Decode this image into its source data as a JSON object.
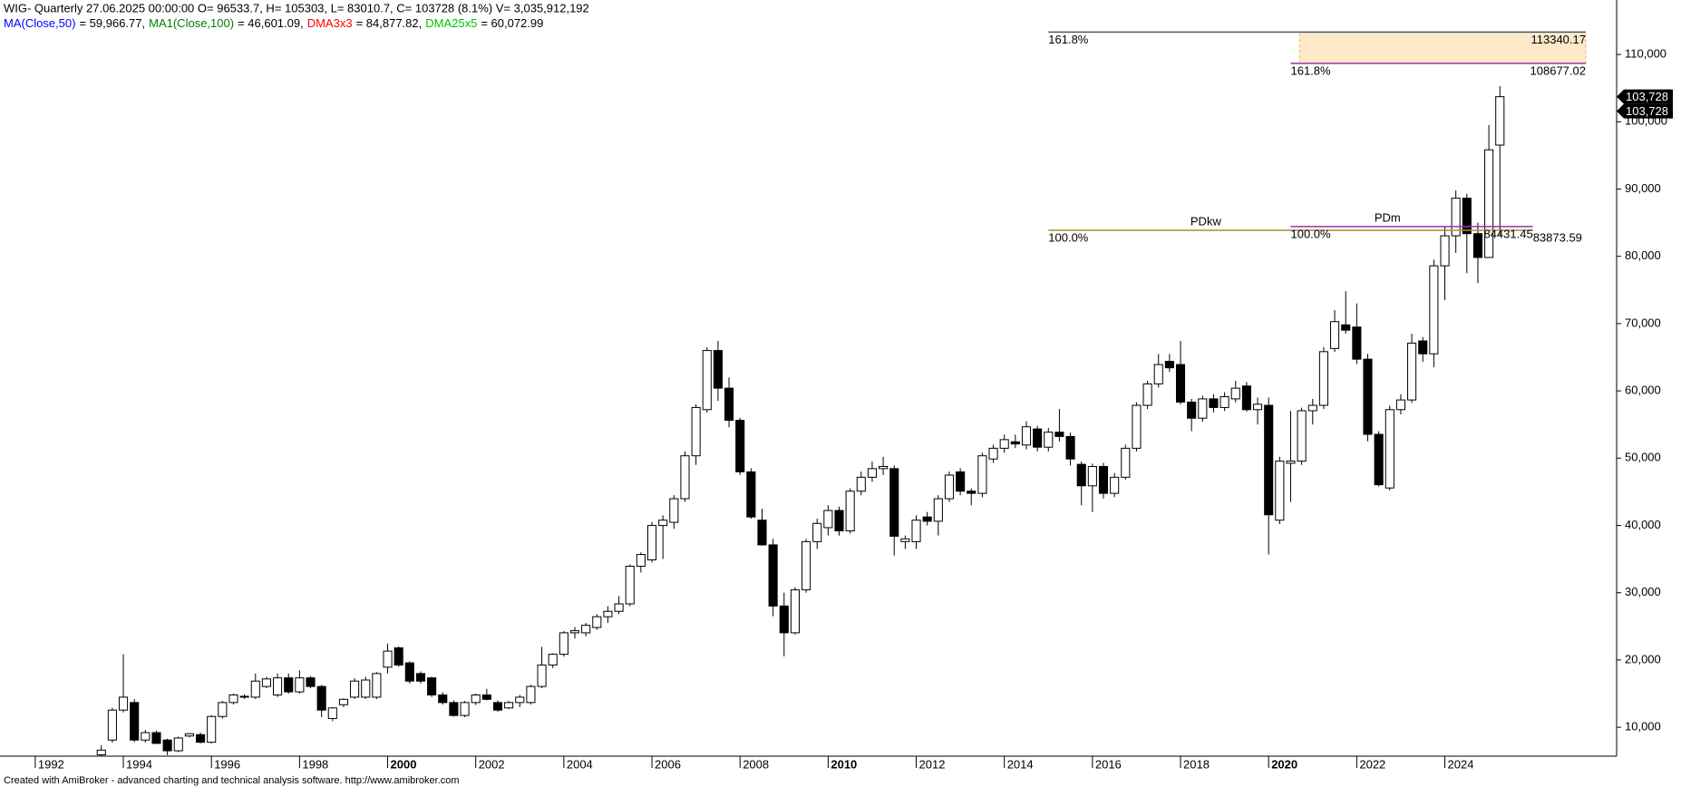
{
  "chart_data": {
    "type": "candlestick",
    "header": "WIG- Quarterly 27.06.2025 00:00:00 O= 96533.7, H= 105303, L= 83010.7, C= 103728 (8.1%) V= 3,035,912,192",
    "indicators": [
      {
        "name": "MA(Close,50)",
        "color": "#0000ff",
        "value": "= 59,966.77,"
      },
      {
        "name": "MA1(Close,100)",
        "color": "#008000",
        "value": "= 46,601.09,"
      },
      {
        "name": "DMA3x3",
        "color": "#ff0000",
        "value": "= 84,877.82,"
      },
      {
        "name": "DMA25x5",
        "color": "#00c000",
        "value": "= 60,072.99"
      }
    ],
    "footer": "Created with AmiBroker - advanced charting and technical analysis software. http://www.amibroker.com",
    "x": [
      1993.5,
      1993.75,
      1994,
      1994.25,
      1994.5,
      1994.75,
      1995,
      1995.25,
      1995.5,
      1995.75,
      1996,
      1996.25,
      1996.5,
      1996.75,
      1997,
      1997.25,
      1997.5,
      1997.75,
      1998,
      1998.25,
      1998.5,
      1998.75,
      1999,
      1999.25,
      1999.5,
      1999.75,
      2000,
      2000.25,
      2000.5,
      2000.75,
      2001,
      2001.25,
      2001.5,
      2001.75,
      2002,
      2002.25,
      2002.5,
      2002.75,
      2003,
      2003.25,
      2003.5,
      2003.75,
      2004,
      2004.25,
      2004.5,
      2004.75,
      2005,
      2005.25,
      2005.5,
      2005.75,
      2006,
      2006.25,
      2006.5,
      2006.75,
      2007,
      2007.25,
      2007.5,
      2007.75,
      2008,
      2008.25,
      2008.5,
      2008.75,
      2009,
      2009.25,
      2009.5,
      2009.75,
      2010,
      2010.25,
      2010.5,
      2010.75,
      2011,
      2011.25,
      2011.5,
      2011.75,
      2012,
      2012.25,
      2012.5,
      2012.75,
      2013,
      2013.25,
      2013.5,
      2013.75,
      2014,
      2014.25,
      2014.5,
      2014.75,
      2015,
      2015.25,
      2015.5,
      2015.75,
      2016,
      2016.25,
      2016.5,
      2016.75,
      2017,
      2017.25,
      2017.5,
      2017.75,
      2018,
      2018.25,
      2018.5,
      2018.75,
      2019,
      2019.25,
      2019.5,
      2019.75,
      2020,
      2020.25,
      2020.5,
      2020.75,
      2021,
      2021.25,
      2021.5,
      2021.75,
      2022,
      2022.25,
      2022.5,
      2022.75,
      2023,
      2023.25,
      2023.5,
      2023.75,
      2024,
      2024.25,
      2024.5,
      2024.75,
      2025,
      2025.25
    ],
    "open": [
      5900,
      8100,
      12550,
      13670,
      8100,
      9200,
      8100,
      6500,
      8700,
      8900,
      7770,
      11600,
      13670,
      14500,
      14470,
      16060,
      14800,
      17340,
      15260,
      17340,
      16060,
      11300,
      13350,
      14470,
      14470,
      14470,
      18930,
      21800,
      19570,
      17980,
      17340,
      14800,
      13670,
      11750,
      13670,
      14800,
      13670,
      12870,
      13670,
      13670,
      16060,
      19250,
      20850,
      24040,
      24040,
      24830,
      26430,
      27230,
      28340,
      33930,
      34880,
      39990,
      40460,
      43970,
      50350,
      57210,
      66000,
      60400,
      55620,
      47960,
      40780,
      37110,
      28020,
      24040,
      30420,
      37590,
      39670,
      42220,
      39190,
      45090,
      47160,
      48440,
      48440,
      37600,
      37590,
      41260,
      40620,
      43970,
      47960,
      45090,
      44770,
      49875,
      51470,
      52430,
      51950,
      54340,
      51630,
      53860,
      53220,
      49080,
      45890,
      48760,
      44770,
      47160,
      51470,
      57850,
      61040,
      64390,
      63910,
      58330,
      55940,
      58810,
      57530,
      58810,
      60720,
      57210,
      57850,
      40780,
      49240,
      49560,
      57050,
      57850,
      66300,
      69810,
      69490,
      64710,
      53540,
      45570,
      57210,
      58650,
      67420,
      65510,
      78590,
      83050,
      88640,
      83370,
      79830,
      96533.7
    ],
    "high": [
      7300,
      12900,
      20850,
      14200,
      9600,
      9500,
      8300,
      8600,
      9100,
      9200,
      11800,
      13900,
      15000,
      14900,
      17980,
      17500,
      18000,
      18000,
      18450,
      17600,
      16300,
      13000,
      14300,
      17300,
      17500,
      18200,
      22440,
      22000,
      19800,
      18300,
      17500,
      15200,
      14000,
      13900,
      15000,
      15700,
      14000,
      13900,
      14800,
      16300,
      21960,
      21000,
      24300,
      24900,
      25500,
      26800,
      28000,
      29500,
      34200,
      36000,
      40500,
      41500,
      44500,
      51000,
      58000,
      66500,
      67420,
      62000,
      56000,
      48500,
      42500,
      38000,
      30000,
      30800,
      38000,
      41000,
      43000,
      42800,
      45500,
      48000,
      49500,
      50200,
      48900,
      38500,
      41500,
      42000,
      44500,
      48000,
      48500,
      45500,
      50800,
      52000,
      53500,
      53500,
      55500,
      54800,
      54500,
      57300,
      53800,
      49500,
      49200,
      49300,
      47800,
      52000,
      58300,
      61500,
      65500,
      65500,
      67400,
      58800,
      59300,
      59500,
      59800,
      61500,
      61300,
      59000,
      59000,
      50200,
      57000,
      57500,
      58800,
      66500,
      72000,
      74800,
      73000,
      65500,
      54000,
      57800,
      59500,
      68500,
      68000,
      79500,
      84500,
      89800,
      89300,
      85000,
      99500,
      105303
    ],
    "low": [
      5700,
      7700,
      12200,
      7800,
      7700,
      7500,
      5850,
      6300,
      8500,
      7600,
      7600,
      11300,
      13400,
      14200,
      14200,
      15800,
      14500,
      15000,
      15000,
      15800,
      11500,
      10900,
      13000,
      14200,
      14200,
      14200,
      18000,
      19000,
      16500,
      16500,
      14500,
      13400,
      11600,
      11500,
      13300,
      14000,
      12300,
      12700,
      13000,
      13400,
      15800,
      18800,
      20500,
      23200,
      23500,
      24500,
      25500,
      26800,
      28000,
      33000,
      34500,
      35000,
      39500,
      43500,
      49000,
      56800,
      58500,
      54600,
      47500,
      41000,
      37000,
      26500,
      20530,
      23800,
      30000,
      36500,
      38500,
      38500,
      38800,
      44500,
      46500,
      47500,
      35520,
      36500,
      36500,
      40000,
      38500,
      43500,
      44500,
      43000,
      44200,
      49300,
      50800,
      51500,
      51300,
      51000,
      51000,
      52500,
      48900,
      43000,
      42000,
      44000,
      44200,
      46800,
      51000,
      57300,
      60500,
      62800,
      58000,
      54000,
      55400,
      56800,
      57000,
      58300,
      56900,
      55000,
      35680,
      40200,
      43500,
      49000,
      55000,
      57300,
      65800,
      68500,
      64000,
      52500,
      45800,
      45200,
      56500,
      58200,
      64300,
      63500,
      73500,
      80500,
      77500,
      76000,
      80500,
      83010.7
    ],
    "close": [
      6600,
      12550,
      14470,
      8100,
      9200,
      7600,
      6500,
      8400,
      9040,
      7770,
      11600,
      13670,
      14800,
      14600,
      16860,
      17180,
      17340,
      15260,
      17340,
      16060,
      12550,
      12870,
      14150,
      16860,
      17020,
      17980,
      21320,
      19250,
      16860,
      16860,
      14800,
      13670,
      11750,
      13670,
      14800,
      14150,
      12550,
      13670,
      14470,
      16060,
      19250,
      20850,
      24040,
      24350,
      25150,
      26430,
      27230,
      28340,
      33930,
      35680,
      39990,
      40780,
      43970,
      50350,
      57530,
      66000,
      60400,
      55620,
      47960,
      41260,
      37110,
      28020,
      24040,
      30420,
      37590,
      40300,
      42220,
      39190,
      45090,
      47160,
      48440,
      48760,
      38390,
      38000,
      40780,
      40620,
      43970,
      47480,
      45090,
      44770,
      50350,
      51470,
      52750,
      52110,
      54660,
      51630,
      53860,
      53220,
      49875,
      45890,
      48760,
      44770,
      47160,
      51470,
      57850,
      61040,
      63910,
      63430,
      58330,
      55940,
      58810,
      57530,
      59130,
      60400,
      57210,
      58010,
      41580,
      49560,
      49560,
      57050,
      57850,
      65830,
      70290,
      69020,
      64710,
      53540,
      46050,
      57210,
      58650,
      67100,
      65510,
      78590,
      83050,
      88640,
      83370,
      79830,
      95830,
      103728
    ],
    "xlim": [
      1991.2,
      2027.9
    ],
    "xticks": [
      1992,
      1994,
      1996,
      1998,
      2000,
      2002,
      2004,
      2006,
      2008,
      2010,
      2012,
      2014,
      2016,
      2018,
      2020,
      2022,
      2024
    ],
    "ylim": [
      5700,
      118100
    ],
    "yticks": [
      {
        "value": 10000,
        "label": "10,000"
      },
      {
        "value": 20000,
        "label": "20,000"
      },
      {
        "value": 30000,
        "label": "30,000"
      },
      {
        "value": 40000,
        "label": "40,000"
      },
      {
        "value": 50000,
        "label": "50,000"
      },
      {
        "value": 60000,
        "label": "60,000"
      },
      {
        "value": 70000,
        "label": "70,000"
      },
      {
        "value": 80000,
        "label": "80,000"
      },
      {
        "value": 90000,
        "label": "90,000"
      },
      {
        "value": 100000,
        "label": "100,000"
      },
      {
        "value": 110000,
        "label": "110,000"
      }
    ],
    "zones": [
      {
        "from": 108677.02,
        "to": 113340.17,
        "x_from": 2020.7,
        "x_to": 2027.2,
        "color": "#fde9c8"
      }
    ],
    "levels": [
      {
        "value": 113340.17,
        "pct": "161.8%",
        "color": "#3c5a78",
        "x_from": 2015.0,
        "x_to": 2027.2,
        "value_anchor": "end"
      },
      {
        "value": 108677.02,
        "pct": "161.8%",
        "color": "#9933aa",
        "x_from": 2020.5,
        "x_to": 2027.2,
        "value_anchor": "end"
      },
      {
        "value": 83873.59,
        "pct": "100.0%",
        "name": "PDkw",
        "color": "#a0923a",
        "x_from": 2015.0,
        "x_to": 2026.0,
        "value_anchor": "start"
      },
      {
        "value": 84431.45,
        "pct": "100.0%",
        "name": "PDm",
        "color": "#9933aa",
        "x_from": 2020.5,
        "x_to": 2026.0,
        "value_anchor": "end"
      }
    ],
    "price_markers": [
      {
        "value": 103728,
        "label": "103,728"
      },
      {
        "value": 103728,
        "label": "103,728"
      }
    ]
  }
}
